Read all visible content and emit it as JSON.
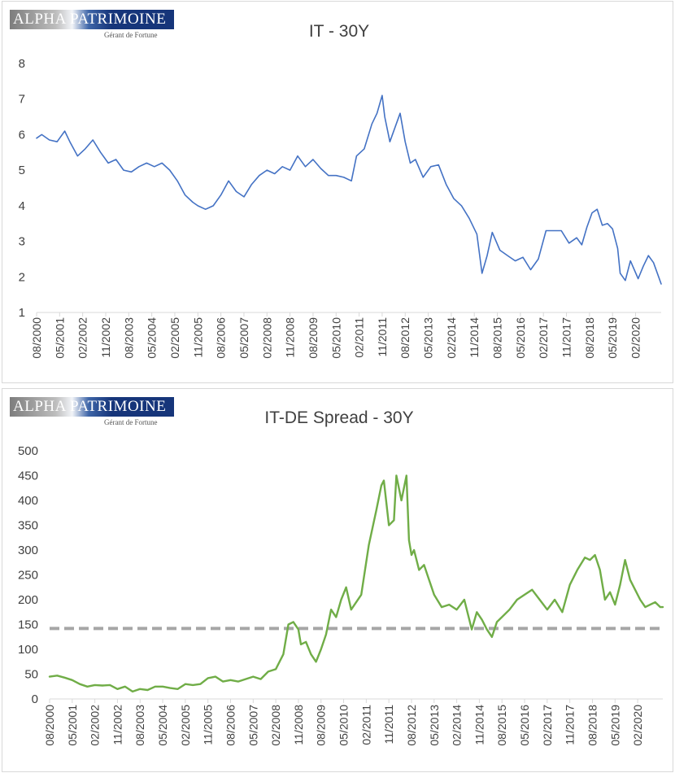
{
  "logo": {
    "part1": "ALPHA",
    "part2": "PATRIMOINE",
    "tagline": "Gérant de Fortune"
  },
  "chart_data": [
    {
      "type": "line",
      "title": "IT - 30Y",
      "xlabel": "",
      "ylabel": "",
      "ylim": [
        1,
        8
      ],
      "yticks": [
        1,
        2,
        3,
        4,
        5,
        6,
        7,
        8
      ],
      "x_range": [
        "2000-08",
        "2020-12"
      ],
      "xtick_labels": [
        "08/2000",
        "05/2001",
        "02/2002",
        "11/2002",
        "08/2003",
        "05/2004",
        "02/2005",
        "11/2005",
        "08/2006",
        "05/2007",
        "02/2008",
        "11/2008",
        "08/2009",
        "05/2010",
        "02/2011",
        "11/2011",
        "08/2012",
        "05/2013",
        "02/2014",
        "11/2014",
        "08/2015",
        "05/2016",
        "02/2017",
        "11/2017",
        "08/2018",
        "05/2019",
        "02/2020"
      ],
      "grid": false,
      "series": [
        {
          "color": "#4472c4",
          "x": [
            "2000-08",
            "2000-10",
            "2001-01",
            "2001-04",
            "2001-07",
            "2001-09",
            "2001-12",
            "2002-03",
            "2002-06",
            "2002-09",
            "2002-12",
            "2003-03",
            "2003-06",
            "2003-09",
            "2003-12",
            "2004-03",
            "2004-06",
            "2004-09",
            "2004-12",
            "2005-03",
            "2005-06",
            "2005-09",
            "2005-11",
            "2006-02",
            "2006-05",
            "2006-08",
            "2006-11",
            "2007-02",
            "2007-05",
            "2007-08",
            "2007-11",
            "2008-02",
            "2008-05",
            "2008-08",
            "2008-11",
            "2009-02",
            "2009-05",
            "2009-08",
            "2009-11",
            "2010-02",
            "2010-05",
            "2010-08",
            "2010-11",
            "2011-01",
            "2011-04",
            "2011-07",
            "2011-09",
            "2011-11",
            "2011-12",
            "2012-02",
            "2012-04",
            "2012-06",
            "2012-08",
            "2012-10",
            "2012-12",
            "2013-03",
            "2013-06",
            "2013-09",
            "2013-12",
            "2014-03",
            "2014-06",
            "2014-09",
            "2014-12",
            "2015-02",
            "2015-04",
            "2015-06",
            "2015-09",
            "2015-12",
            "2016-03",
            "2016-06",
            "2016-09",
            "2016-12",
            "2017-03",
            "2017-06",
            "2017-09",
            "2017-12",
            "2018-03",
            "2018-05",
            "2018-07",
            "2018-09",
            "2018-11",
            "2019-01",
            "2019-03",
            "2019-05",
            "2019-07",
            "2019-08",
            "2019-10",
            "2019-12",
            "2020-03",
            "2020-05",
            "2020-07",
            "2020-09",
            "2020-11",
            "2020-12"
          ],
          "values": [
            5.9,
            6.0,
            5.85,
            5.8,
            6.1,
            5.8,
            5.4,
            5.6,
            5.85,
            5.5,
            5.2,
            5.3,
            5.0,
            4.95,
            5.1,
            5.2,
            5.1,
            5.2,
            5.0,
            4.7,
            4.3,
            4.1,
            4.0,
            3.9,
            4.0,
            4.3,
            4.7,
            4.4,
            4.25,
            4.6,
            4.85,
            5.0,
            4.9,
            5.1,
            5.0,
            5.4,
            5.1,
            5.3,
            5.05,
            4.85,
            4.85,
            4.8,
            4.7,
            5.4,
            5.6,
            6.3,
            6.6,
            7.1,
            6.5,
            5.8,
            6.2,
            6.6,
            5.8,
            5.2,
            5.3,
            4.8,
            5.1,
            5.15,
            4.6,
            4.2,
            4.0,
            3.65,
            3.2,
            2.1,
            2.6,
            3.25,
            2.75,
            2.6,
            2.45,
            2.55,
            2.2,
            2.5,
            3.3,
            3.3,
            3.3,
            2.95,
            3.1,
            2.9,
            3.4,
            3.8,
            3.9,
            3.45,
            3.5,
            3.35,
            2.8,
            2.1,
            1.9,
            2.45,
            1.95,
            2.3,
            2.6,
            2.4,
            2.0,
            1.8
          ]
        }
      ]
    },
    {
      "type": "line",
      "title": "IT-DE Spread - 30Y",
      "xlabel": "",
      "ylabel": "",
      "ylim": [
        0,
        500
      ],
      "yticks": [
        0,
        50,
        100,
        150,
        200,
        250,
        300,
        350,
        400,
        450,
        500
      ],
      "x_range": [
        "2000-08",
        "2020-12"
      ],
      "xtick_labels": [
        "08/2000",
        "05/2001",
        "02/2002",
        "11/2002",
        "08/2003",
        "05/2004",
        "02/2005",
        "11/2005",
        "08/2006",
        "05/2007",
        "02/2008",
        "11/2008",
        "08/2009",
        "05/2010",
        "02/2011",
        "11/2011",
        "08/2012",
        "05/2013",
        "02/2014",
        "11/2014",
        "08/2015",
        "05/2016",
        "02/2017",
        "11/2017",
        "08/2018",
        "05/2019",
        "02/2020"
      ],
      "grid": false,
      "reference_line": {
        "value": 142,
        "color": "#a6a6a6",
        "style": "dashed"
      },
      "series": [
        {
          "color": "#70ad47",
          "x": [
            "2000-08",
            "2000-11",
            "2001-02",
            "2001-05",
            "2001-08",
            "2001-11",
            "2002-02",
            "2002-05",
            "2002-08",
            "2002-11",
            "2003-02",
            "2003-05",
            "2003-08",
            "2003-11",
            "2004-02",
            "2004-05",
            "2004-08",
            "2004-11",
            "2005-02",
            "2005-05",
            "2005-08",
            "2005-11",
            "2006-02",
            "2006-05",
            "2006-08",
            "2006-11",
            "2007-02",
            "2007-05",
            "2007-08",
            "2007-11",
            "2008-02",
            "2008-05",
            "2008-07",
            "2008-09",
            "2008-11",
            "2008-12",
            "2009-02",
            "2009-04",
            "2009-06",
            "2009-08",
            "2009-10",
            "2009-12",
            "2010-02",
            "2010-04",
            "2010-06",
            "2010-08",
            "2010-10",
            "2010-12",
            "2011-03",
            "2011-06",
            "2011-08",
            "2011-09",
            "2011-11",
            "2012-01",
            "2012-02",
            "2012-04",
            "2012-06",
            "2012-07",
            "2012-08",
            "2012-09",
            "2012-11",
            "2013-01",
            "2013-03",
            "2013-05",
            "2013-08",
            "2013-11",
            "2014-02",
            "2014-05",
            "2014-08",
            "2014-10",
            "2014-12",
            "2015-02",
            "2015-04",
            "2015-06",
            "2015-09",
            "2015-11",
            "2016-02",
            "2016-05",
            "2016-08",
            "2016-11",
            "2017-02",
            "2017-05",
            "2017-08",
            "2017-11",
            "2018-02",
            "2018-05",
            "2018-07",
            "2018-09",
            "2018-11",
            "2019-01",
            "2019-03",
            "2019-05",
            "2019-07",
            "2019-09",
            "2019-11",
            "2020-01",
            "2020-03",
            "2020-05",
            "2020-07",
            "2020-09",
            "2020-11",
            "2020-12"
          ],
          "values": [
            45,
            47,
            43,
            38,
            30,
            25,
            28,
            27,
            28,
            20,
            25,
            15,
            20,
            18,
            25,
            25,
            22,
            20,
            30,
            28,
            30,
            42,
            45,
            35,
            38,
            35,
            40,
            45,
            40,
            55,
            60,
            90,
            150,
            155,
            140,
            110,
            115,
            90,
            75,
            100,
            130,
            180,
            165,
            200,
            225,
            180,
            195,
            210,
            310,
            380,
            430,
            440,
            350,
            360,
            450,
            400,
            450,
            320,
            290,
            300,
            260,
            270,
            240,
            210,
            185,
            190,
            180,
            200,
            140,
            175,
            160,
            140,
            125,
            155,
            170,
            180,
            200,
            210,
            220,
            200,
            180,
            200,
            175,
            230,
            260,
            285,
            280,
            290,
            260,
            200,
            215,
            190,
            230,
            280,
            240,
            220,
            200,
            185,
            190,
            195,
            185,
            185
          ]
        }
      ]
    }
  ]
}
